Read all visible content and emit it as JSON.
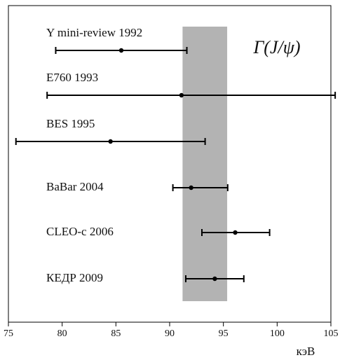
{
  "chart_data": {
    "type": "errorbar",
    "categories": [
      "Υ mini-review 1992",
      "E760 1993",
      "BES 1995",
      "BaBar 2004",
      "CLEO-c 2006",
      "КЕДР 2009"
    ],
    "values": [
      85.5,
      91.1,
      84.5,
      92,
      96.1,
      94.2
    ],
    "err_minus": [
      6.1,
      12.5,
      8.8,
      1.7,
      3.1,
      2.7
    ],
    "err_plus": [
      6.1,
      14.3,
      8.8,
      3.4,
      3.2,
      2.7
    ],
    "color": "#000000",
    "band": {
      "from": 91.2,
      "to": 95.35,
      "color": "#b3b3b3"
    },
    "annotation": "Γ(J/ψ)",
    "xlabel": "кэВ",
    "xlim": [
      75,
      105
    ],
    "xticks": [
      75,
      80,
      85,
      90,
      95,
      100,
      105
    ]
  }
}
